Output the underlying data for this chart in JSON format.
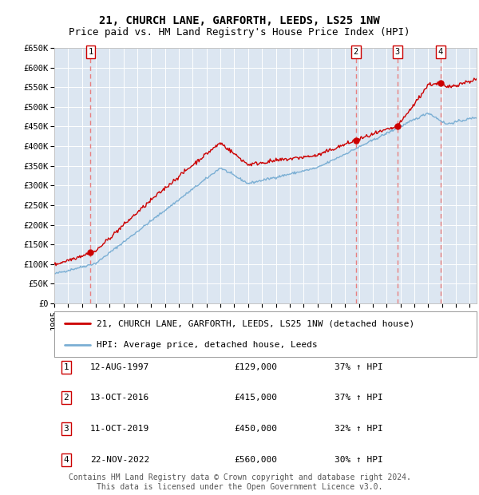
{
  "title": "21, CHURCH LANE, GARFORTH, LEEDS, LS25 1NW",
  "subtitle": "Price paid vs. HM Land Registry's House Price Index (HPI)",
  "ylim": [
    0,
    650000
  ],
  "yticks": [
    0,
    50000,
    100000,
    150000,
    200000,
    250000,
    300000,
    350000,
    400000,
    450000,
    500000,
    550000,
    600000,
    650000
  ],
  "ytick_labels": [
    "£0",
    "£50K",
    "£100K",
    "£150K",
    "£200K",
    "£250K",
    "£300K",
    "£350K",
    "£400K",
    "£450K",
    "£500K",
    "£550K",
    "£600K",
    "£650K"
  ],
  "xlim_start": 1995.0,
  "xlim_end": 2025.5,
  "plot_bg_color": "#dce6f1",
  "red_line_color": "#cc0000",
  "blue_line_color": "#7bafd4",
  "vline_color": "#e88080",
  "transactions": [
    {
      "num": 1,
      "year": 1997.619,
      "price": 129000,
      "date": "12-AUG-1997",
      "pct": "37%",
      "dir": "↑"
    },
    {
      "num": 2,
      "year": 2016.786,
      "price": 415000,
      "date": "13-OCT-2016",
      "pct": "37%",
      "dir": "↑"
    },
    {
      "num": 3,
      "year": 2019.786,
      "price": 450000,
      "date": "11-OCT-2019",
      "pct": "32%",
      "dir": "↑"
    },
    {
      "num": 4,
      "year": 2022.9,
      "price": 560000,
      "date": "22-NOV-2022",
      "pct": "30%",
      "dir": "↑"
    }
  ],
  "legend_label_red": "21, CHURCH LANE, GARFORTH, LEEDS, LS25 1NW (detached house)",
  "legend_label_blue": "HPI: Average price, detached house, Leeds",
  "footer": "Contains HM Land Registry data © Crown copyright and database right 2024.\nThis data is licensed under the Open Government Licence v3.0.",
  "title_fontsize": 10,
  "subtitle_fontsize": 9,
  "tick_fontsize": 7.5,
  "legend_fontsize": 8,
  "table_fontsize": 8,
  "footer_fontsize": 7
}
